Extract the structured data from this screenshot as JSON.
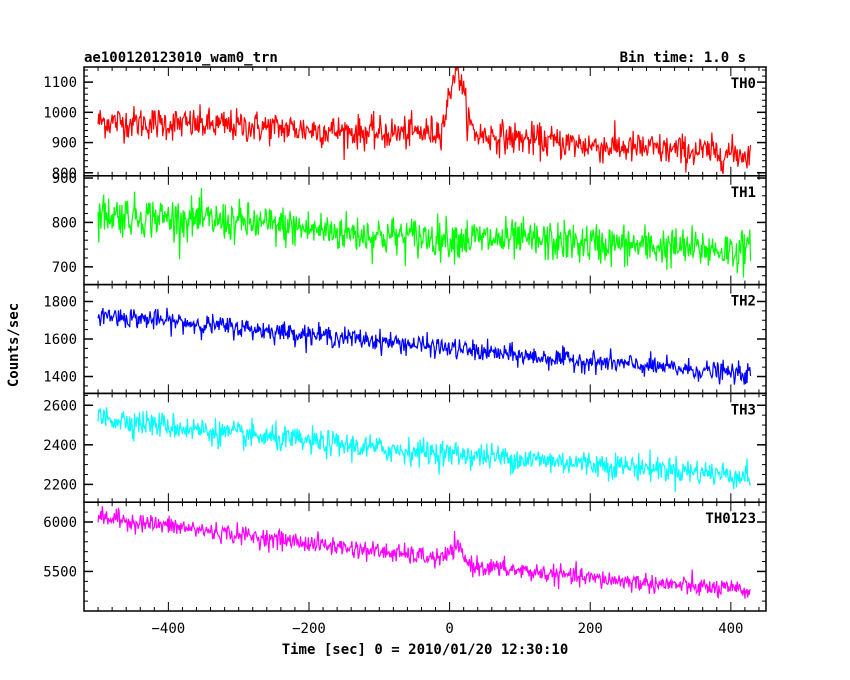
{
  "chart_data": {
    "type": "line",
    "title": "ae100120123010_wam0_trn",
    "bin_time_label": "Bin time: 1.0 s",
    "xlabel": "Time [sec] 0 = 2010/01/20 12:30:10",
    "ylabel": "Counts/sec",
    "xlim": [
      -520,
      450
    ],
    "x_ticks": [
      -400,
      -200,
      0,
      200,
      400
    ],
    "x_tick_labels": [
      "−400",
      "−200",
      "0",
      "200",
      "400"
    ],
    "x_range_data": [
      -500,
      428
    ],
    "grid": false,
    "panels": [
      {
        "name": "TH0",
        "color": "#ff0000",
        "ylim": [
          790,
          1150
        ],
        "y_ticks": [
          800,
          900,
          1000,
          1100
        ],
        "y_tick_labels": [
          "800",
          "900",
          "1000",
          "1100"
        ],
        "trend": [
          [
            -500,
            970
          ],
          [
            -300,
            955
          ],
          [
            -100,
            930
          ],
          [
            0,
            935
          ],
          [
            200,
            890
          ],
          [
            428,
            860
          ]
        ],
        "noise": 45,
        "peak": {
          "time": 10,
          "height": 210,
          "width": 14
        },
        "minor_step": 20
      },
      {
        "name": "TH1",
        "color": "#00ff00",
        "ylim": [
          660,
          905
        ],
        "y_ticks": [
          700,
          800,
          900
        ],
        "y_tick_labels": [
          "700",
          "800",
          "900"
        ],
        "trend": [
          [
            -500,
            820
          ],
          [
            -300,
            800
          ],
          [
            -100,
            770
          ],
          [
            100,
            760
          ],
          [
            300,
            745
          ],
          [
            428,
            735
          ]
        ],
        "noise": 38,
        "peak": null,
        "minor_step": 20
      },
      {
        "name": "TH2",
        "color": "#0000ff",
        "ylim": [
          1310,
          1890
        ],
        "y_ticks": [
          1400,
          1600,
          1800
        ],
        "y_tick_labels": [
          "1400",
          "1600",
          "1800"
        ],
        "trend": [
          [
            -500,
            1730
          ],
          [
            -300,
            1660
          ],
          [
            -100,
            1590
          ],
          [
            100,
            1510
          ],
          [
            300,
            1450
          ],
          [
            428,
            1410
          ]
        ],
        "noise": 45,
        "peak": null,
        "minor_step": 50
      },
      {
        "name": "TH3",
        "color": "#00ffff",
        "ylim": [
          2110,
          2660
        ],
        "y_ticks": [
          2200,
          2400,
          2600
        ],
        "y_tick_labels": [
          "2200",
          "2400",
          "2600"
        ],
        "trend": [
          [
            -500,
            2540
          ],
          [
            -300,
            2450
          ],
          [
            -100,
            2380
          ],
          [
            100,
            2330
          ],
          [
            300,
            2280
          ],
          [
            428,
            2240
          ]
        ],
        "noise": 55,
        "peak": null,
        "minor_step": 50
      },
      {
        "name": "TH0123",
        "color": "#ff00ff",
        "ylim": [
          5100,
          6200
        ],
        "y_ticks": [
          5500,
          6000
        ],
        "y_tick_labels": [
          "5500",
          "6000"
        ],
        "trend": [
          [
            -500,
            6050
          ],
          [
            -300,
            5870
          ],
          [
            -100,
            5700
          ],
          [
            0,
            5620
          ],
          [
            30,
            5560
          ],
          [
            200,
            5430
          ],
          [
            428,
            5300
          ]
        ],
        "noise": 80,
        "peak": {
          "time": 10,
          "height": 140,
          "width": 12
        },
        "minor_step": 100
      }
    ]
  }
}
